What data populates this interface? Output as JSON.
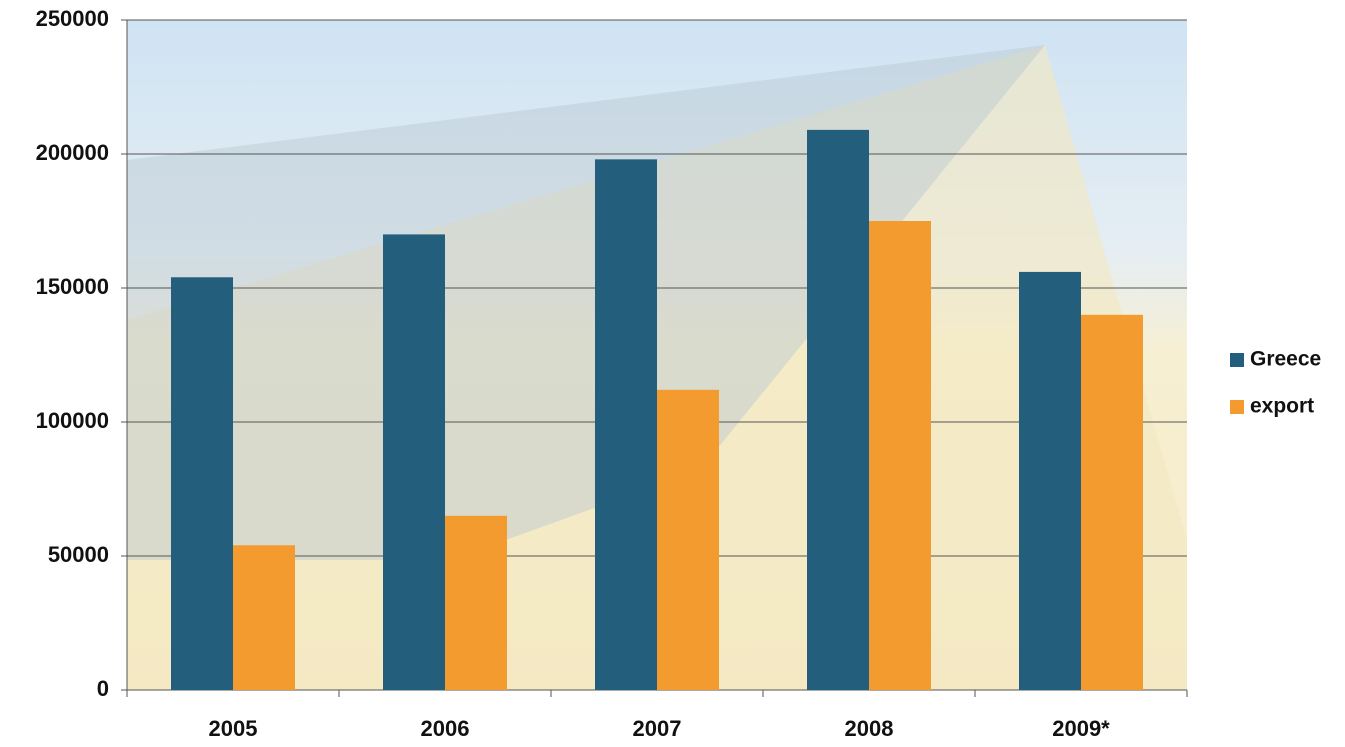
{
  "chart_data": {
    "type": "bar",
    "categories": [
      "2005",
      "2006",
      "2007",
      "2008",
      "2009*"
    ],
    "series": [
      {
        "name": "Greece",
        "color": "#235e7d",
        "values": [
          154000,
          170000,
          198000,
          209000,
          156000
        ]
      },
      {
        "name": "export",
        "color": "#f39b2f",
        "values": [
          54000,
          65000,
          112000,
          175000,
          140000
        ]
      }
    ],
    "ylim": [
      0,
      250000
    ],
    "yticks": [
      0,
      50000,
      100000,
      150000,
      200000,
      250000
    ],
    "grid": true
  }
}
